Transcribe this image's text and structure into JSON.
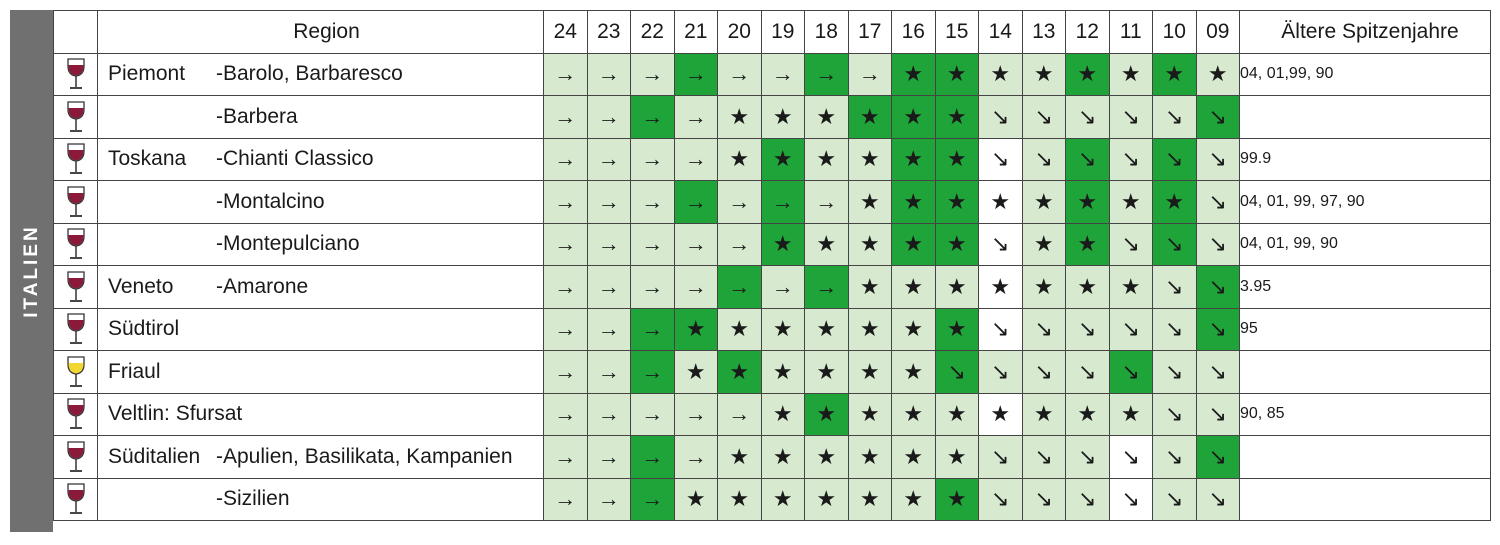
{
  "country": "ITALIEN",
  "header": {
    "region": "Region",
    "older": "Ältere Spitzenjahre"
  },
  "colors": {
    "light_green": "#d7ead0",
    "dark_green": "#1fa43a",
    "white": "#ffffff",
    "red_wine": "#8b1a3a",
    "white_wine": "#f2d632",
    "sidebar": "#707070"
  },
  "legend_symbols": {
    "arrow-right": "→",
    "star": "★",
    "arrow-down-right": "↘"
  },
  "chart_data": {
    "type": "table",
    "years": [
      "24",
      "23",
      "22",
      "21",
      "20",
      "19",
      "18",
      "17",
      "16",
      "15",
      "14",
      "13",
      "12",
      "11",
      "10",
      "09"
    ],
    "rows": [
      {
        "region": "Piemont",
        "subregion": "-Barolo, Barbaresco",
        "wine": "red",
        "symbols": [
          "→",
          "→",
          "→",
          "→",
          "→",
          "→",
          "→",
          "→",
          "★",
          "★",
          "★",
          "★",
          "★",
          "★",
          "★",
          "★"
        ],
        "shades": [
          "l",
          "l",
          "l",
          "d",
          "l",
          "l",
          "d",
          "l",
          "d",
          "d",
          "l",
          "l",
          "d",
          "l",
          "d",
          "l"
        ],
        "older": "04, 01,99, 90"
      },
      {
        "region": "",
        "subregion": "-Barbera",
        "wine": "red",
        "symbols": [
          "→",
          "→",
          "→",
          "→",
          "★",
          "★",
          "★",
          "★",
          "★",
          "★",
          "↘",
          "↘",
          "↘",
          "↘",
          "↘",
          "↘"
        ],
        "shades": [
          "l",
          "l",
          "d",
          "l",
          "l",
          "l",
          "l",
          "d",
          "d",
          "d",
          "l",
          "l",
          "l",
          "l",
          "l",
          "d"
        ],
        "older": ""
      },
      {
        "region": "Toskana",
        "subregion": "-Chianti Classico",
        "wine": "red",
        "symbols": [
          "→",
          "→",
          "→",
          "→",
          "★",
          "★",
          "★",
          "★",
          "★",
          "★",
          "↘",
          "↘",
          "↘",
          "↘",
          "↘",
          "↘"
        ],
        "shades": [
          "l",
          "l",
          "l",
          "l",
          "l",
          "d",
          "l",
          "l",
          "d",
          "d",
          "w",
          "l",
          "d",
          "l",
          "d",
          "l"
        ],
        "older": "99.9"
      },
      {
        "region": "",
        "subregion": "-Montalcino",
        "wine": "red",
        "symbols": [
          "→",
          "→",
          "→",
          "→",
          "→",
          "→",
          "→",
          "★",
          "★",
          "★",
          "★",
          "★",
          "★",
          "★",
          "★",
          "↘"
        ],
        "shades": [
          "l",
          "l",
          "l",
          "d",
          "l",
          "d",
          "l",
          "l",
          "d",
          "d",
          "w",
          "l",
          "d",
          "l",
          "d",
          "l"
        ],
        "older": "04, 01, 99, 97, 90"
      },
      {
        "region": "",
        "subregion": "-Montepulciano",
        "wine": "red",
        "symbols": [
          "→",
          "→",
          "→",
          "→",
          "→",
          "★",
          "★",
          "★",
          "★",
          "★",
          "↘",
          "★",
          "★",
          "↘",
          "↘",
          "↘"
        ],
        "shades": [
          "l",
          "l",
          "l",
          "l",
          "l",
          "d",
          "l",
          "l",
          "d",
          "d",
          "w",
          "l",
          "d",
          "l",
          "d",
          "l"
        ],
        "older": "04, 01, 99, 90"
      },
      {
        "region": "Veneto",
        "subregion": "-Amarone",
        "wine": "red",
        "symbols": [
          "→",
          "→",
          "→",
          "→",
          "→",
          "→",
          "→",
          "★",
          "★",
          "★",
          "★",
          "★",
          "★",
          "★",
          "↘",
          "↘"
        ],
        "shades": [
          "l",
          "l",
          "l",
          "l",
          "d",
          "l",
          "d",
          "l",
          "l",
          "l",
          "w",
          "l",
          "l",
          "l",
          "l",
          "d"
        ],
        "older": "3.95"
      },
      {
        "region": "Südtirol",
        "subregion": "",
        "wine": "red",
        "symbols": [
          "→",
          "→",
          "→",
          "★",
          "★",
          "★",
          "★",
          "★",
          "★",
          "★",
          "↘",
          "↘",
          "↘",
          "↘",
          "↘",
          "↘"
        ],
        "shades": [
          "l",
          "l",
          "d",
          "d",
          "l",
          "l",
          "l",
          "l",
          "l",
          "d",
          "w",
          "l",
          "l",
          "l",
          "l",
          "d"
        ],
        "older": "95"
      },
      {
        "region": "Friaul",
        "subregion": "",
        "wine": "white",
        "symbols": [
          "→",
          "→",
          "→",
          "★",
          "★",
          "★",
          "★",
          "★",
          "★",
          "↘",
          "↘",
          "↘",
          "↘",
          "↘",
          "↘",
          "↘"
        ],
        "shades": [
          "l",
          "l",
          "d",
          "l",
          "d",
          "l",
          "l",
          "l",
          "l",
          "d",
          "l",
          "l",
          "l",
          "d",
          "l",
          "l"
        ],
        "older": ""
      },
      {
        "region": "Veltlin: Sfursat",
        "subregion": "",
        "wine": "red",
        "symbols": [
          "→",
          "→",
          "→",
          "→",
          "→",
          "★",
          "★",
          "★",
          "★",
          "★",
          "★",
          "★",
          "★",
          "★",
          "↘",
          "↘"
        ],
        "shades": [
          "l",
          "l",
          "l",
          "l",
          "l",
          "l",
          "d",
          "l",
          "l",
          "l",
          "w",
          "l",
          "l",
          "l",
          "l",
          "l"
        ],
        "older": "90, 85"
      },
      {
        "region": "Süditalien",
        "subregion": "-Apulien, Basilikata, Kampanien",
        "wine": "red",
        "symbols": [
          "→",
          "→",
          "→",
          "→",
          "★",
          "★",
          "★",
          "★",
          "★",
          "★",
          "↘",
          "↘",
          "↘",
          "↘",
          "↘",
          "↘"
        ],
        "shades": [
          "l",
          "l",
          "d",
          "l",
          "l",
          "l",
          "l",
          "l",
          "l",
          "l",
          "l",
          "l",
          "l",
          "w",
          "l",
          "d"
        ],
        "older": ""
      },
      {
        "region": "",
        "subregion": "-Sizilien",
        "wine": "red",
        "symbols": [
          "→",
          "→",
          "→",
          "★",
          "★",
          "★",
          "★",
          "★",
          "★",
          "★",
          "↘",
          "↘",
          "↘",
          "↘",
          "↘",
          "↘"
        ],
        "shades": [
          "l",
          "l",
          "d",
          "l",
          "l",
          "l",
          "l",
          "l",
          "l",
          "d",
          "l",
          "l",
          "l",
          "w",
          "l",
          "l"
        ],
        "older": ""
      }
    ]
  }
}
